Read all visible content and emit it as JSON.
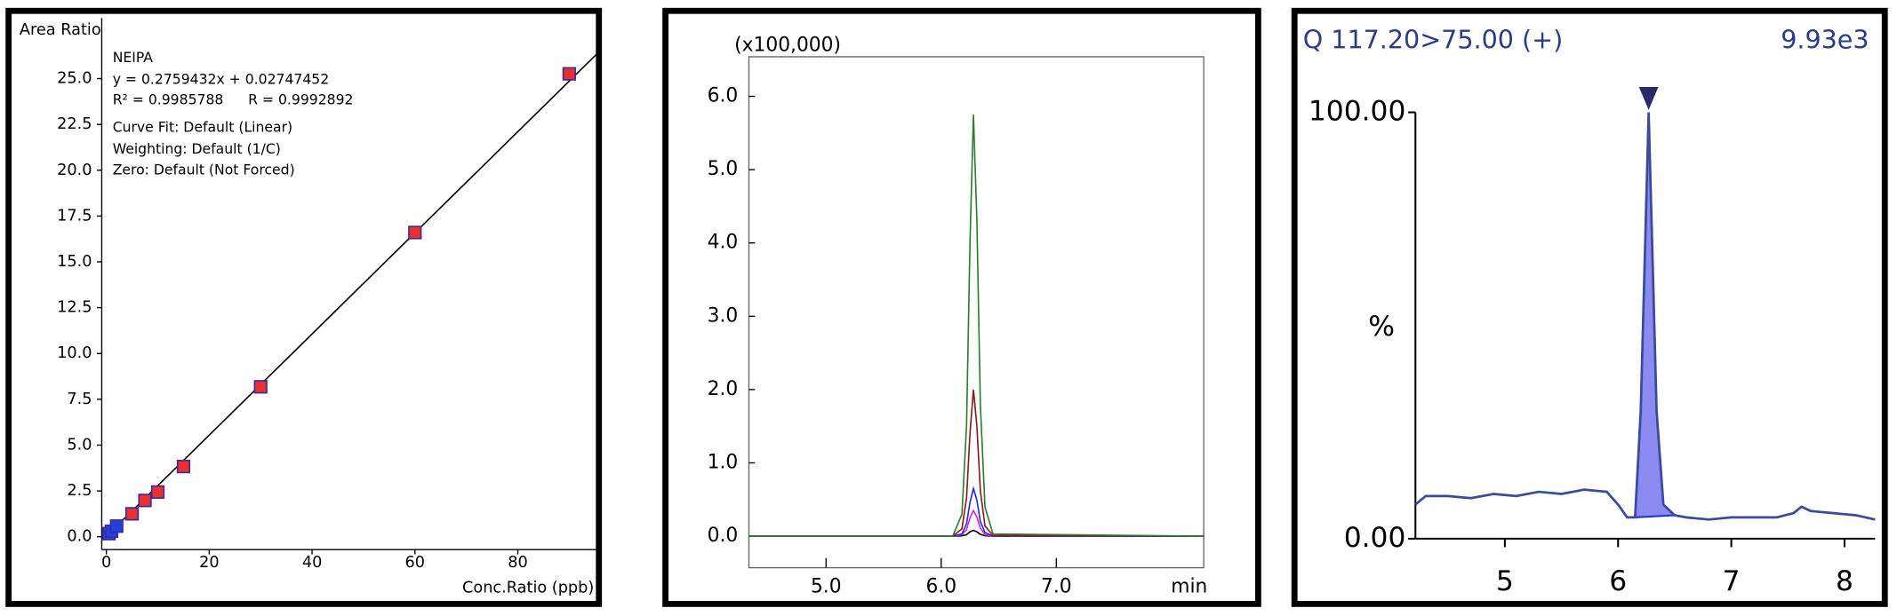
{
  "chart_data": [
    {
      "type": "scatter",
      "y_label": "Area Ratio",
      "x_label": "Conc.Ratio (ppb)",
      "annotations": [
        "NEIPA",
        "y = 0.2759432x + 0.02747452",
        "R² = 0.9985788",
        "R = 0.9992892",
        "Curve Fit: Default (Linear)",
        "Weighting: Default (1/C)",
        "Zero: Default (Not Forced)"
      ],
      "fit_line": {
        "slope": 0.2759432,
        "intercept": 0.02747452,
        "color": "#000000"
      },
      "series": [
        {
          "color": "#2040e0",
          "x": [
            0.5,
            1,
            2
          ],
          "values": [
            0.17,
            0.3,
            0.58
          ]
        },
        {
          "color": "#e83030",
          "x": [
            5,
            7.5,
            10,
            15,
            30,
            60,
            90
          ],
          "values": [
            1.25,
            1.98,
            2.44,
            3.83,
            8.18,
            16.6,
            25.26
          ]
        }
      ],
      "xlim": [
        -0.9,
        95.3
      ],
      "xticks": [
        0,
        20,
        40,
        60,
        80
      ],
      "ylim": [
        -0.7,
        28.3
      ],
      "yticks": [
        {
          "value": 0,
          "label": "0.0"
        },
        {
          "value": 2.5,
          "label": "2.5"
        },
        {
          "value": 5,
          "label": "5.0"
        },
        {
          "value": 7.5,
          "label": "7.5"
        },
        {
          "value": 10,
          "label": "10.0"
        },
        {
          "value": 12.5,
          "label": "12.5"
        },
        {
          "value": 15,
          "label": "15.0"
        },
        {
          "value": 17.5,
          "label": "17.5"
        },
        {
          "value": 20,
          "label": "20.0"
        },
        {
          "value": 22.5,
          "label": "22.5"
        },
        {
          "value": 25,
          "label": "25.0"
        }
      ]
    },
    {
      "type": "line",
      "y_label": "(x100,000)",
      "x_label": "min",
      "x": [
        4.33,
        6.1,
        6.18,
        6.22,
        6.25,
        6.28,
        6.31,
        6.34,
        6.38,
        6.45,
        8.28
      ],
      "series": [
        {
          "color": "#2e7d32",
          "values": [
            0,
            0,
            0.3,
            1.5,
            4.0,
            5.75,
            4.3,
            1.8,
            0.4,
            0.03,
            0
          ]
        },
        {
          "color": "#8b1a1a",
          "values": [
            0,
            0,
            0.1,
            0.52,
            1.4,
            2.0,
            1.5,
            0.62,
            0.14,
            0.01,
            0
          ]
        },
        {
          "color": "#2030e0",
          "values": [
            0,
            0,
            0.03,
            0.17,
            0.46,
            0.65,
            0.49,
            0.2,
            0.05,
            0,
            0
          ]
        },
        {
          "color": "#e020e0",
          "values": [
            0,
            0,
            0.02,
            0.09,
            0.25,
            0.35,
            0.26,
            0.11,
            0.02,
            0,
            0
          ]
        },
        {
          "color": "#000000",
          "values": [
            0,
            0,
            0.004,
            0.02,
            0.06,
            0.08,
            0.06,
            0.025,
            0.006,
            0,
            0
          ]
        }
      ],
      "xlim": [
        4.33,
        8.28
      ],
      "xticks": [
        {
          "value": 5,
          "label": "5.0"
        },
        {
          "value": 6,
          "label": "6.0"
        },
        {
          "value": 7,
          "label": "7.0"
        }
      ],
      "ylim": [
        -0.43,
        6.54
      ],
      "yticks": [
        {
          "value": 0,
          "label": "0.0"
        },
        {
          "value": 1,
          "label": "1.0"
        },
        {
          "value": 2,
          "label": "2.0"
        },
        {
          "value": 3,
          "label": "3.0"
        },
        {
          "value": 4,
          "label": "4.0"
        },
        {
          "value": 5,
          "label": "5.0"
        },
        {
          "value": 6,
          "label": "6.0"
        }
      ]
    },
    {
      "type": "area",
      "title": "Q 117.20>75.00 (+)",
      "subtitle": "9.93e3",
      "y_label": "%",
      "color": "#3a4a9c",
      "fill_color": "#8a8af0",
      "peak_range": [
        6.15,
        6.5
      ],
      "x": [
        4.21,
        4.3,
        4.5,
        4.7,
        4.9,
        5.1,
        5.3,
        5.5,
        5.7,
        5.9,
        6.0,
        6.08,
        6.15,
        6.2,
        6.24,
        6.27,
        6.3,
        6.34,
        6.4,
        6.5,
        6.6,
        6.8,
        7.0,
        7.2,
        7.4,
        7.55,
        7.62,
        7.7,
        7.9,
        8.1,
        8.27
      ],
      "values": [
        8,
        10,
        10,
        9.5,
        10.5,
        10,
        11,
        10.5,
        11.5,
        11,
        8,
        5,
        5,
        30,
        70,
        100,
        70,
        30,
        8,
        5.5,
        5,
        4.5,
        5,
        5,
        5,
        6,
        7.5,
        6.5,
        6,
        5.5,
        4.5
      ],
      "xlim": [
        4.21,
        8.27
      ],
      "xticks": [
        5,
        6,
        7,
        8
      ],
      "ylim": [
        0,
        100
      ],
      "yticks": [
        {
          "value": 0,
          "label": "0.00"
        },
        {
          "value": 100,
          "label": "100.00"
        }
      ]
    }
  ]
}
